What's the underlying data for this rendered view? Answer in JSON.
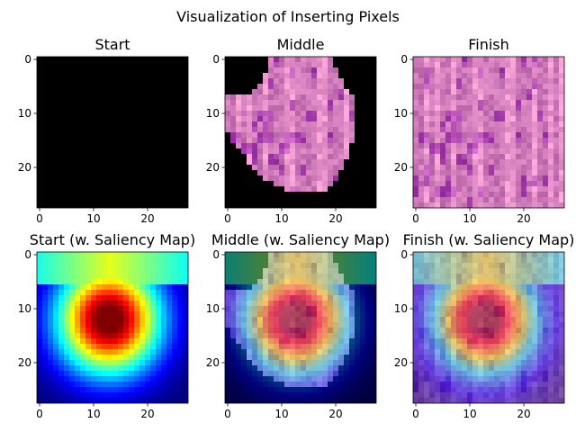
{
  "figure": {
    "suptitle": "Visualization of Inserting Pixels"
  },
  "chart_data": [
    {
      "type": "heatmap",
      "title": "Start",
      "grid": 28,
      "content": "black",
      "xticks": [
        "0",
        "10",
        "20"
      ],
      "yticks": [
        "0",
        "10",
        "20"
      ],
      "xlim": [
        -0.5,
        27.5
      ],
      "ylim": [
        27.5,
        -0.5
      ]
    },
    {
      "type": "heatmap",
      "title": "Middle",
      "grid": 28,
      "content": "tissue-masked",
      "xticks": [
        "0",
        "10",
        "20"
      ],
      "yticks": [
        "0",
        "10",
        "20"
      ],
      "xlim": [
        -0.5,
        27.5
      ],
      "ylim": [
        27.5,
        -0.5
      ]
    },
    {
      "type": "heatmap",
      "title": "Finish",
      "grid": 28,
      "content": "tissue",
      "xticks": [
        "0",
        "10",
        "20"
      ],
      "yticks": [
        "0",
        "10",
        "20"
      ],
      "xlim": [
        -0.5,
        27.5
      ],
      "ylim": [
        27.5,
        -0.5
      ]
    },
    {
      "type": "heatmap",
      "title": "Start (w. Saliency Map)",
      "grid": 28,
      "content": "saliency",
      "colormap": "jet",
      "xticks": [
        "0",
        "10",
        "20"
      ],
      "yticks": [
        "0",
        "10",
        "20"
      ],
      "xlim": [
        -0.5,
        27.5
      ],
      "ylim": [
        27.5,
        -0.5
      ]
    },
    {
      "type": "heatmap",
      "title": "Middle (w. Saliency Map)",
      "grid": 28,
      "content": "tissue-masked+saliency",
      "colormap": "jet",
      "xticks": [
        "0",
        "10",
        "20"
      ],
      "yticks": [
        "0",
        "10",
        "20"
      ],
      "xlim": [
        -0.5,
        27.5
      ],
      "ylim": [
        27.5,
        -0.5
      ]
    },
    {
      "type": "heatmap",
      "title": "Finish (w. Saliency Map)",
      "grid": 28,
      "content": "tissue+saliency",
      "colormap": "jet",
      "xticks": [
        "0",
        "10",
        "20"
      ],
      "yticks": [
        "0",
        "10",
        "20"
      ],
      "xlim": [
        -0.5,
        27.5
      ],
      "ylim": [
        27.5,
        -0.5
      ]
    }
  ]
}
